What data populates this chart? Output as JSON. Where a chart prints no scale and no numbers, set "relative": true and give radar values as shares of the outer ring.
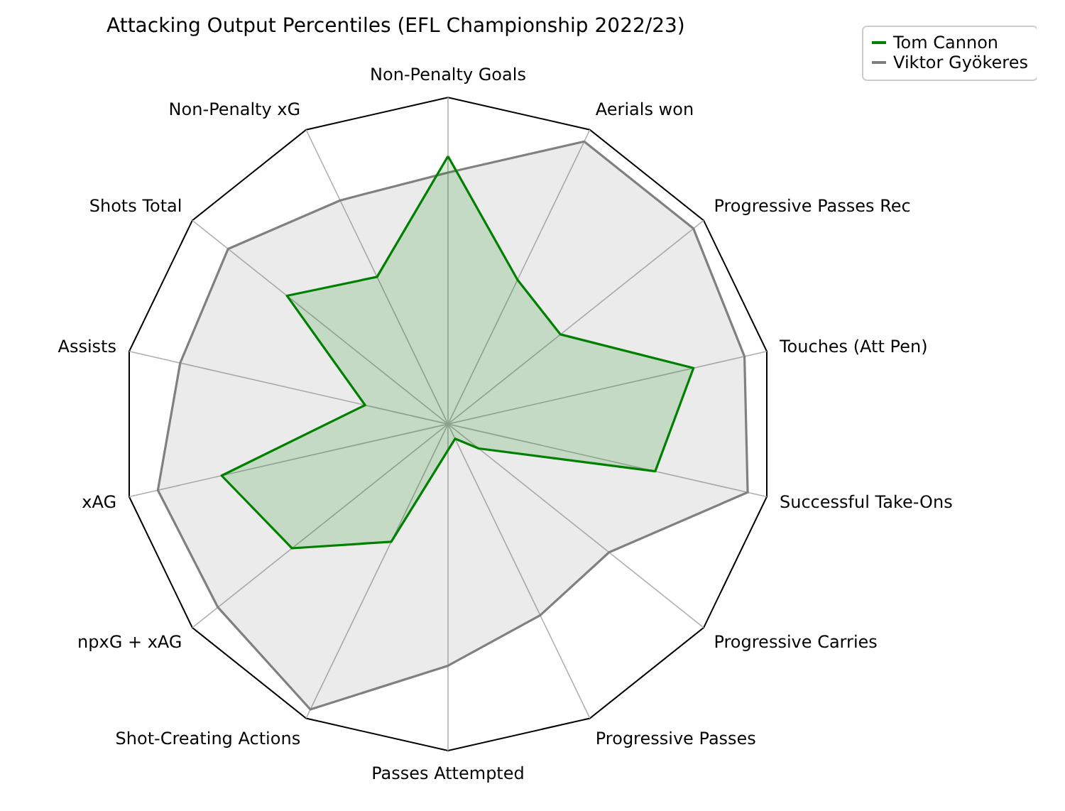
{
  "chart_data": {
    "type": "radar",
    "title": "Attacking Output Percentiles (EFL Championship 2022/23)",
    "relative": true,
    "grid": true,
    "legend": "top right",
    "categories": [
      "Non-Penalty Goals",
      "Aerials won",
      "Progressive Passes Rec",
      "Touches (Att Pen)",
      "Successful Take-Ons",
      "Progressive Carries",
      "Progressive Passes",
      "Passes Attempted",
      "Shot-Creating Actions",
      "npxG + xAG",
      "xAG",
      "Assists",
      "Shots Total",
      "Non-Penalty xG"
    ],
    "series": [
      {
        "name": "Tom Cannon",
        "color": "#008000",
        "values": [
          0.82,
          0.49,
          0.44,
          0.77,
          0.65,
          0.12,
          0.05,
          0.08,
          0.4,
          0.61,
          0.71,
          0.26,
          0.63,
          0.5
        ]
      },
      {
        "name": "Viktor Gyökeres",
        "color": "#808080",
        "values": [
          0.77,
          0.96,
          0.96,
          0.93,
          0.94,
          0.63,
          0.65,
          0.74,
          0.97,
          0.9,
          0.91,
          0.84,
          0.86,
          0.76
        ]
      }
    ]
  }
}
